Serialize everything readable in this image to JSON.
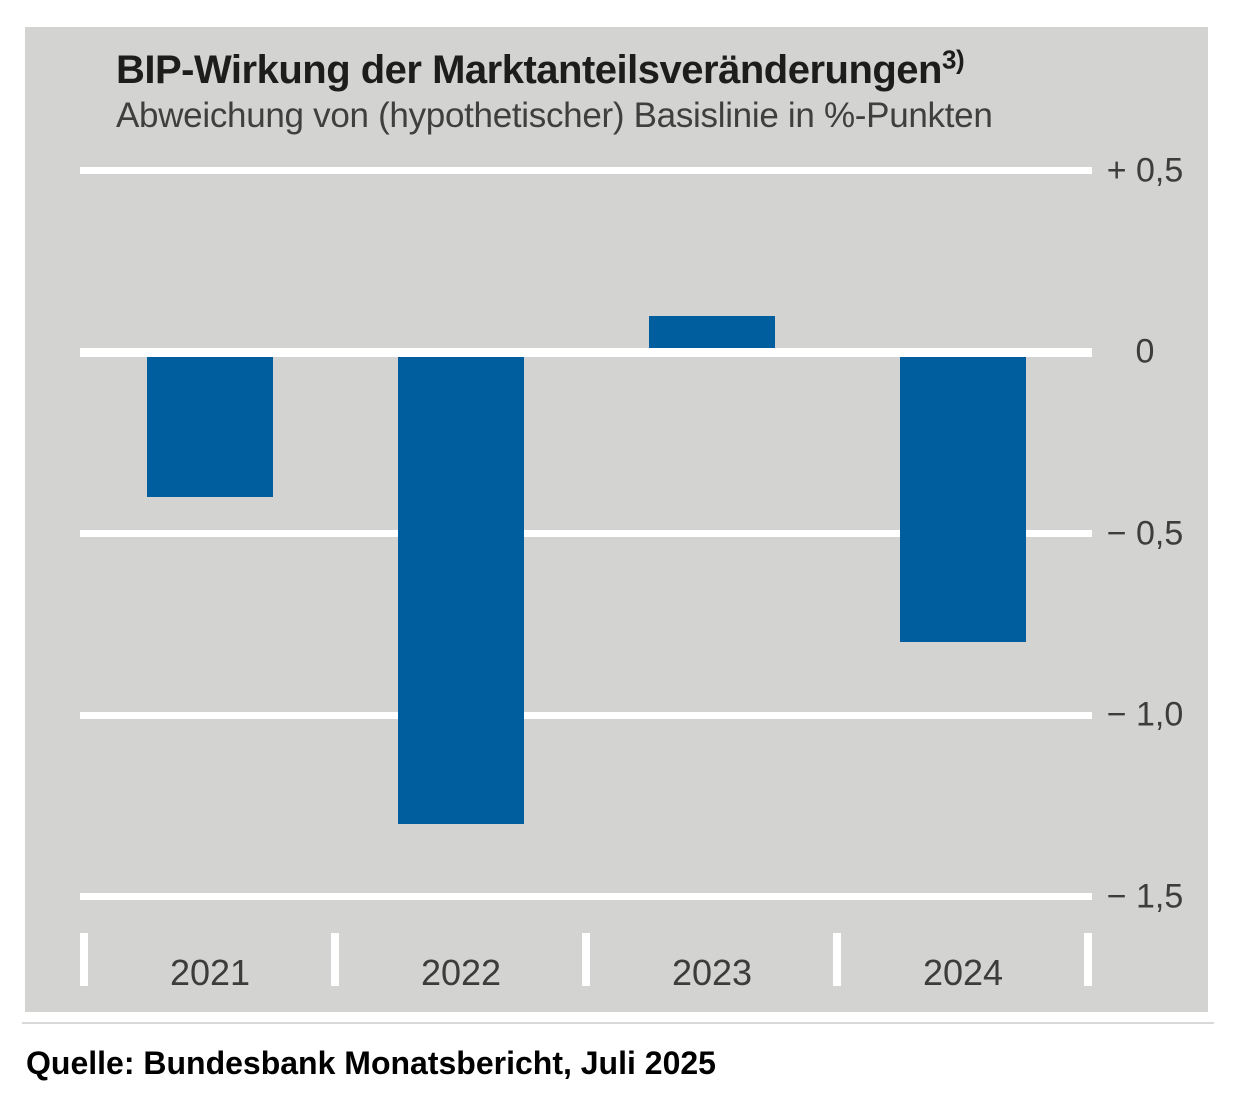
{
  "header": {
    "title": "BIP-Wirkung der Marktanteilsveränderungen",
    "footnote_marker": "3)",
    "subtitle": "Abweichung von (hypothetischer) Basislinie in %-Punkten"
  },
  "source": "Quelle: Bundesbank Monatsbericht, Juli 2025",
  "chart_data": {
    "type": "bar",
    "title": "BIP-Wirkung der Marktanteilsveränderungen 3)",
    "subtitle": "Abweichung von (hypothetischer) Basislinie in %-Punkten",
    "categories": [
      "2021",
      "2022",
      "2023",
      "2024"
    ],
    "values": [
      -0.4,
      -1.3,
      0.1,
      -0.8
    ],
    "ylabel": "",
    "xlabel": "",
    "ylim": [
      -1.65,
      0.6
    ],
    "yticks": [
      {
        "value": 0.5,
        "label": "+ 0,5"
      },
      {
        "value": 0,
        "label": "0"
      },
      {
        "value": -0.5,
        "label": "− 0,5"
      },
      {
        "value": -1.0,
        "label": "− 1,0"
      },
      {
        "value": -1.5,
        "label": "− 1,5"
      }
    ],
    "grid": true,
    "legend": false,
    "ticklabel_side": "right",
    "colors": {
      "bar": "#005d9e",
      "plot_background": "#d3d3d1",
      "gridline": "#ffffff",
      "text": "#3d3d3c"
    }
  }
}
